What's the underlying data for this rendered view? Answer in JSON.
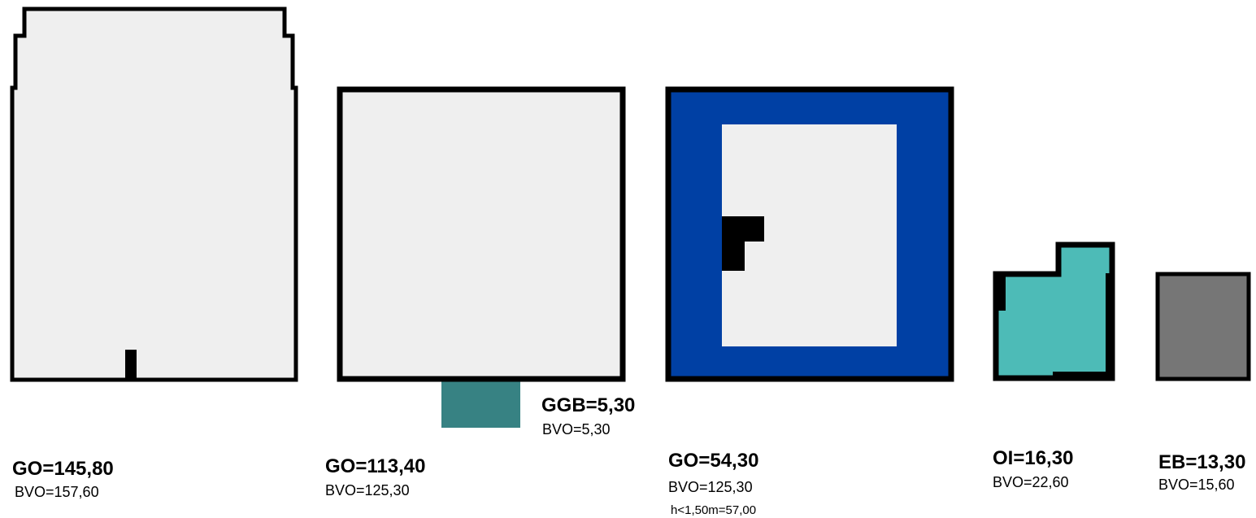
{
  "colors": {
    "floor_fill": "#efefef",
    "outline": "#000000",
    "blue_ring": "#0040a4",
    "teal_dark": "#378283",
    "teal_light": "#4dbbb7",
    "grey": "#767676"
  },
  "blocks": [
    {
      "main_label": "GO=145,80",
      "sub_label": "BVO=157,60"
    },
    {
      "main_label": "GO=113,40",
      "sub_label": "BVO=125,30",
      "annex": {
        "main_label": "GGB=5,30",
        "sub_label": "BVO=5,30"
      }
    },
    {
      "main_label": "GO=54,30",
      "sub_label": "BVO=125,30",
      "extra_label": "h<1,50m=57,00"
    },
    {
      "main_label": "OI=16,30",
      "sub_label": "BVO=22,60"
    },
    {
      "main_label": "EB=13,30",
      "sub_label": "BVO=15,60"
    }
  ]
}
